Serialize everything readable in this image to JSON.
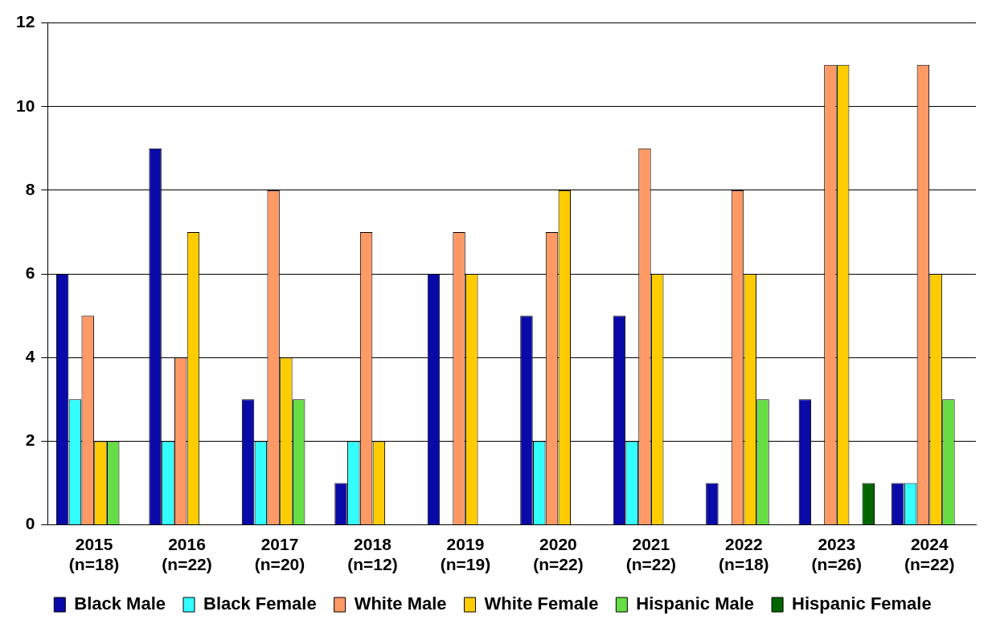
{
  "chart_data": {
    "type": "bar",
    "categories": [
      "2015\n(n=18)",
      "2016\n(n=22)",
      "2017\n(n=20)",
      "2018\n(n=12)",
      "2019\n(n=19)",
      "2020\n(n=22)",
      "2021\n(n=22)",
      "2022\n(n=18)",
      "2023\n(n=26)",
      "2024\n(n=22)"
    ],
    "series": [
      {
        "name": "Black Male",
        "color": "#0a0aa8",
        "values": [
          6,
          9,
          3,
          1,
          6,
          5,
          5,
          1,
          3,
          1
        ]
      },
      {
        "name": "Black Female",
        "color": "#33ffff",
        "values": [
          3,
          2,
          2,
          2,
          0,
          2,
          2,
          0,
          0,
          1
        ]
      },
      {
        "name": "White Male",
        "color": "#ff9966",
        "values": [
          5,
          4,
          8,
          7,
          7,
          7,
          9,
          8,
          11,
          11
        ]
      },
      {
        "name": "White Female",
        "color": "#ffcc00",
        "values": [
          2,
          7,
          4,
          2,
          6,
          8,
          6,
          6,
          11,
          6
        ]
      },
      {
        "name": "Hispanic Male",
        "color": "#66dd44",
        "values": [
          2,
          0,
          3,
          0,
          0,
          0,
          0,
          3,
          0,
          3
        ]
      },
      {
        "name": "Hispanic Female",
        "color": "#006600",
        "values": [
          0,
          0,
          0,
          0,
          0,
          0,
          0,
          0,
          1,
          0
        ]
      }
    ],
    "ylim": [
      0,
      12
    ],
    "yticks": [
      0,
      2,
      4,
      6,
      8,
      10,
      12
    ],
    "grid": "y",
    "legend": "bottom"
  }
}
